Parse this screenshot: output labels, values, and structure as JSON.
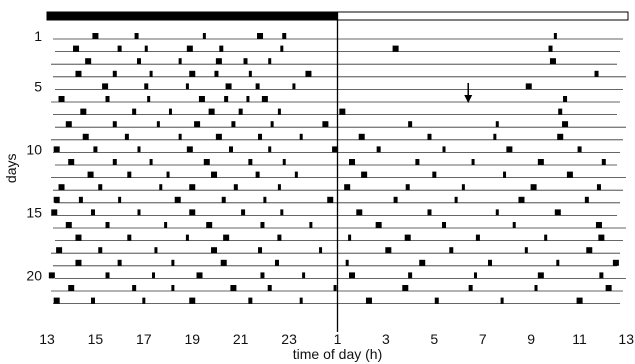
{
  "chart_data": {
    "type": "actogram",
    "xlabel": "time of day (h)",
    "ylabel": "days",
    "x_ticks": [
      "13",
      "15",
      "17",
      "19",
      "21",
      "23",
      "1",
      "3",
      "5",
      "7",
      "9",
      "11",
      "13"
    ],
    "y_ticks": [
      "1",
      "5",
      "10",
      "15",
      "20"
    ],
    "xlim_hours_from_13": [
      0,
      24
    ],
    "day_count": 22,
    "light_dark_bar": [
      {
        "phase": "dark",
        "start": 0,
        "end": 12
      },
      {
        "phase": "light",
        "start": 12,
        "end": 24
      }
    ],
    "divider_hour_from_13": 12,
    "arrow_marker": {
      "day": 6,
      "hour_from_13": 17.4
    },
    "bouts": [
      {
        "day": 1,
        "hours": [
          2.0,
          3.7,
          6.5,
          8.8,
          9.8,
          21.0
        ]
      },
      {
        "day": 2,
        "hours": [
          1.2,
          3.0,
          4.1,
          5.9,
          7.2,
          9.7,
          14.4,
          20.8
        ]
      },
      {
        "day": 3,
        "hours": [
          1.7,
          3.8,
          5.5,
          7.1,
          8.2,
          9.2,
          20.9
        ]
      },
      {
        "day": 4,
        "hours": [
          1.3,
          2.8,
          4.3,
          6.0,
          7.0,
          8.4,
          10.8,
          22.7
        ]
      },
      {
        "day": 5,
        "hours": [
          2.4,
          4.1,
          5.8,
          7.5,
          8.7,
          10.2,
          19.9
        ]
      },
      {
        "day": 6,
        "hours": [
          0.6,
          2.5,
          4.2,
          6.4,
          7.4,
          8.3,
          9.0,
          21.4
        ]
      },
      {
        "day": 7,
        "hours": [
          1.5,
          3.6,
          5.1,
          6.8,
          8.0,
          9.6,
          12.2,
          21.2
        ]
      },
      {
        "day": 8,
        "hours": [
          0.9,
          2.8,
          4.6,
          6.2,
          7.7,
          9.3,
          11.5,
          15.0,
          18.6,
          21.4
        ]
      },
      {
        "day": 9,
        "hours": [
          1.6,
          3.3,
          5.5,
          7.1,
          8.8,
          10.5,
          13.0,
          15.8,
          18.5,
          21.2
        ]
      },
      {
        "day": 10,
        "hours": [
          0.4,
          2.0,
          3.8,
          5.9,
          7.6,
          9.2,
          11.9,
          13.7,
          16.4,
          19.1,
          22.0
        ]
      },
      {
        "day": 11,
        "hours": [
          1.0,
          2.8,
          4.3,
          6.6,
          8.4,
          9.8,
          12.6,
          15.3,
          17.6,
          20.4,
          23.0
        ]
      },
      {
        "day": 12,
        "hours": [
          1.8,
          3.4,
          5.0,
          6.9,
          8.7,
          10.3,
          13.1,
          16.0,
          18.9,
          21.6
        ]
      },
      {
        "day": 13,
        "hours": [
          0.6,
          2.2,
          4.7,
          6.0,
          7.8,
          9.6,
          12.4,
          14.9,
          17.2,
          20.1,
          22.8
        ]
      },
      {
        "day": 14,
        "hours": [
          0.4,
          1.4,
          3.0,
          5.4,
          7.3,
          9.0,
          11.7,
          14.4,
          16.9,
          19.6,
          22.3
        ]
      },
      {
        "day": 15,
        "hours": [
          0.3,
          1.9,
          3.8,
          6.0,
          8.1,
          9.7,
          12.9,
          15.8,
          18.6,
          21.1
        ]
      },
      {
        "day": 16,
        "hours": [
          0.9,
          2.5,
          4.9,
          6.7,
          8.9,
          10.9,
          13.7,
          16.4,
          19.3,
          22.8
        ]
      },
      {
        "day": 17,
        "hours": [
          1.3,
          3.4,
          5.8,
          7.4,
          9.6,
          12.5,
          14.9,
          17.8,
          20.6,
          22.9
        ]
      },
      {
        "day": 18,
        "hours": [
          0.5,
          2.2,
          4.5,
          6.9,
          8.8,
          11.3,
          14.1,
          16.7,
          19.8,
          22.4
        ]
      },
      {
        "day": 19,
        "hours": [
          1.3,
          3.0,
          5.2,
          7.3,
          9.5,
          12.4,
          15.5,
          18.3,
          21.1,
          23.5
        ]
      },
      {
        "day": 20,
        "hours": [
          0.2,
          2.5,
          4.4,
          6.3,
          8.9,
          10.6,
          12.6,
          15.0,
          17.7,
          20.4,
          22.9
        ]
      },
      {
        "day": 21,
        "hours": [
          1.0,
          3.6,
          5.2,
          7.7,
          9.2,
          11.9,
          14.8,
          17.5,
          20.2,
          23.2
        ]
      },
      {
        "day": 22,
        "hours": [
          0.4,
          1.9,
          4.0,
          6.0,
          8.4,
          10.5,
          13.3,
          16.1,
          18.8,
          22.0
        ]
      }
    ]
  }
}
